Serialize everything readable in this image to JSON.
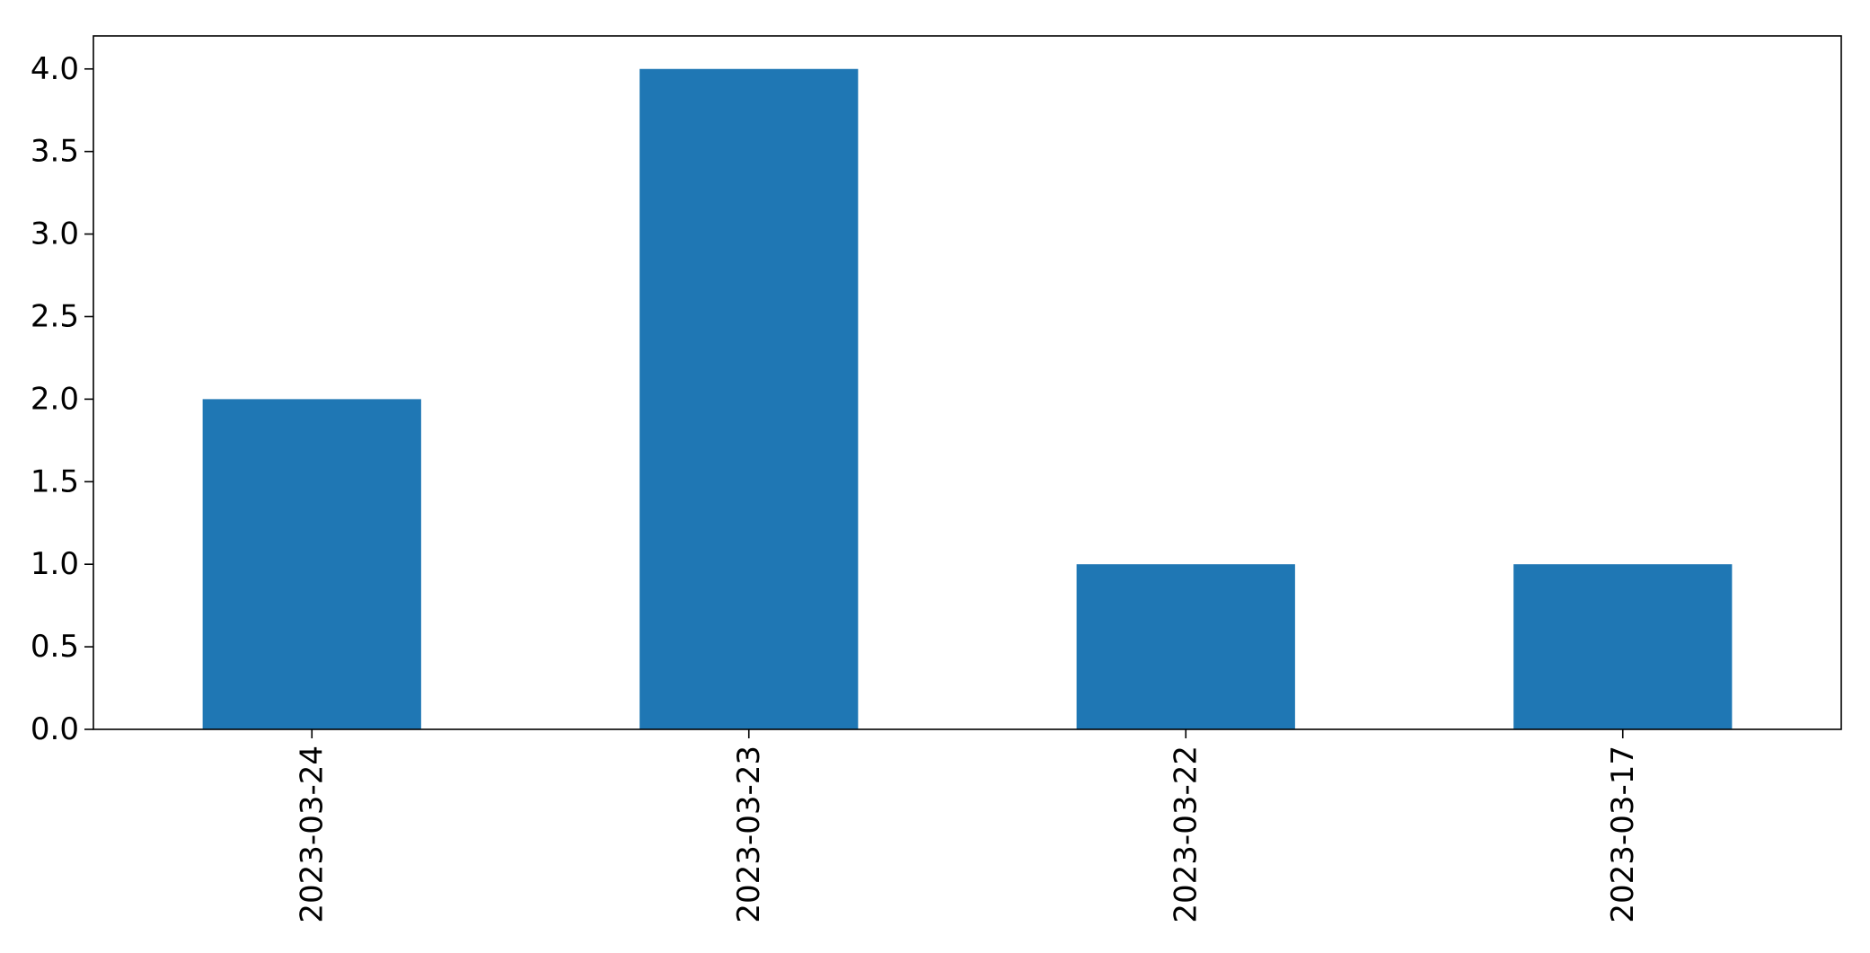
{
  "chart_data": {
    "type": "bar",
    "title": "",
    "xlabel": "",
    "ylabel": "",
    "categories": [
      "2023-03-24",
      "2023-03-23",
      "2023-03-22",
      "2023-03-17"
    ],
    "values": [
      2,
      4,
      1,
      1
    ],
    "ylim": [
      0,
      4.2
    ],
    "yticks": [
      0.0,
      0.5,
      1.0,
      1.5,
      2.0,
      2.5,
      3.0,
      3.5,
      4.0
    ],
    "ytick_labels": [
      "0.0",
      "0.5",
      "1.0",
      "1.5",
      "2.0",
      "2.5",
      "3.0",
      "3.5",
      "4.0"
    ],
    "xtick_rotation": "vertical",
    "grid": false,
    "legend": "none",
    "bar_color": "#1f77b4",
    "axis_color": "#000000",
    "background_color": "#ffffff"
  }
}
